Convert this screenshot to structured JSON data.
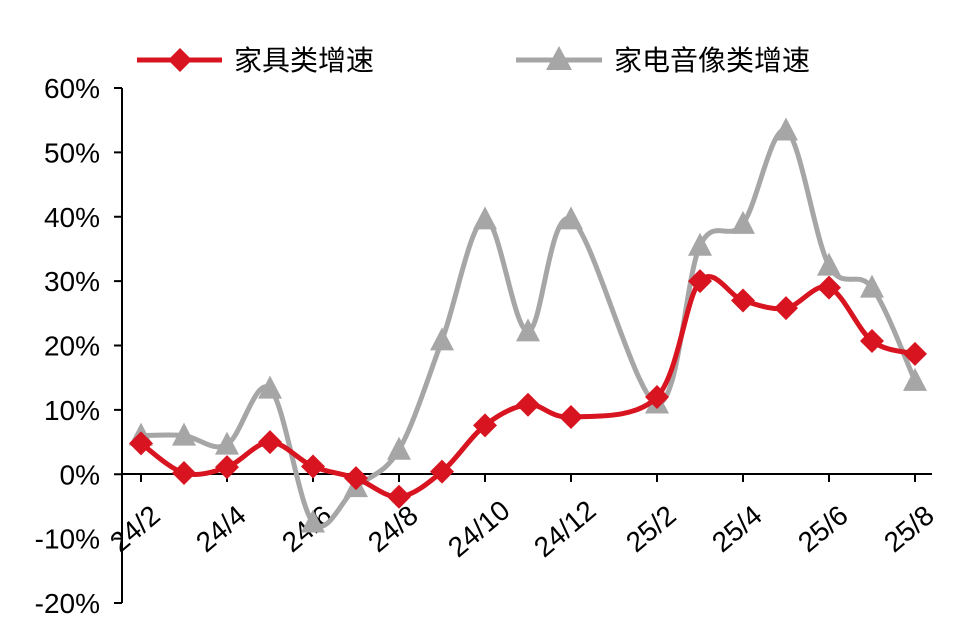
{
  "chart_data": {
    "type": "line",
    "title": "",
    "xlabel": "",
    "ylabel": "",
    "ylim": [
      -20,
      60
    ],
    "yticks": [
      "60%",
      "50%",
      "40%",
      "30%",
      "20%",
      "10%",
      "0%",
      "-10%",
      "-20%"
    ],
    "ytick_values": [
      60,
      50,
      40,
      30,
      20,
      10,
      0,
      -10,
      -20
    ],
    "categories": [
      "24/2",
      "24/3",
      "24/4",
      "24/5",
      "24/6",
      "24/7",
      "24/8",
      "24/9",
      "24/10",
      "24/11",
      "24/12",
      "25/1",
      "25/2",
      "25/3",
      "25/4",
      "25/5",
      "25/6",
      "25/7",
      "25/8"
    ],
    "xtick_labels": [
      "24/2",
      "24/4",
      "24/6",
      "24/8",
      "24/10",
      "24/12",
      "25/2",
      "25/4",
      "25/6",
      "25/8"
    ],
    "legend_position": "top",
    "grid": false,
    "series": [
      {
        "name": "家具类增速",
        "color": "#d7141f",
        "marker": "diamond",
        "values": [
          4.8,
          0.2,
          1.1,
          5.0,
          1.2,
          -0.6,
          -3.5,
          0.4,
          7.6,
          10.8,
          8.9,
          null,
          12.0,
          30.0,
          27.0,
          25.8,
          29.0,
          20.7,
          18.7
        ]
      },
      {
        "name": "家电音像类增速",
        "color": "#a6a6a6",
        "marker": "triangle",
        "values": [
          6.0,
          6.0,
          4.6,
          13.3,
          -7.5,
          -2.0,
          3.8,
          20.8,
          39.6,
          22.2,
          39.6,
          null,
          11.0,
          35.5,
          38.9,
          53.4,
          32.4,
          29.0,
          14.5
        ]
      }
    ]
  }
}
